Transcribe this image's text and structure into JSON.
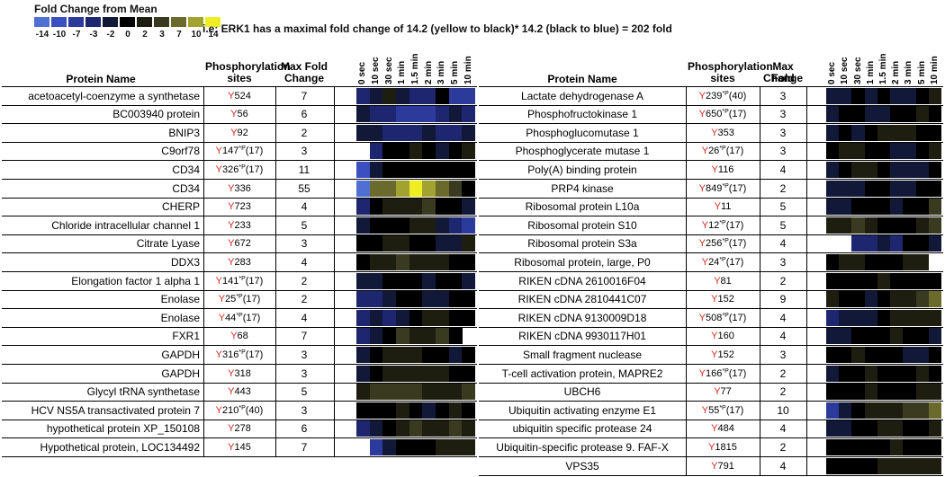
{
  "legend": {
    "title": "Fold Change from Mean",
    "labels": [
      "-14",
      "-10",
      "-7",
      "-3",
      "-2",
      "0",
      "2",
      "3",
      "7",
      "10",
      "14"
    ],
    "colors": [
      "#4f6fd2",
      "#3a4fc0",
      "#2c3a9c",
      "#1e2670",
      "#111838",
      "#000000",
      "#1e1e10",
      "#3a3a20",
      "#6a6a2c",
      "#a2a230",
      "#eeee22"
    ]
  },
  "note": "i.e: ERK1 has a maximal fold change of 14.2 (yellow to black)* 14.2 (black to blue) = 202 fold",
  "headers": {
    "protein": "Protein Name",
    "sites_line1": "Phosphorylation",
    "sites_line2": "sites",
    "fold_line1": "Max Fold",
    "fold_line2": "Change"
  },
  "times": [
    "0 sec",
    "10 sec",
    "30 sec",
    "1 min",
    "1.5 min",
    "2 min",
    "3 min",
    "5 min",
    "10 min"
  ],
  "left_table": [
    {
      "protein": "acetoacetyl-coenzyme a synthetase",
      "site": "524",
      "sup": "",
      "ref": "",
      "fold": "7",
      "heat": [
        3,
        4,
        6,
        4,
        3,
        3,
        5,
        2,
        2
      ]
    },
    {
      "protein": "BC003940 protein",
      "site": "56",
      "sup": "",
      "ref": "",
      "fold": "6",
      "heat": [
        4,
        3,
        3,
        2,
        2,
        2,
        3,
        4,
        3
      ]
    },
    {
      "protein": "BNIP3",
      "site": "92",
      "sup": "",
      "ref": "",
      "fold": "2",
      "heat": [
        4,
        4,
        3,
        3,
        3,
        4,
        3,
        3,
        4
      ]
    },
    {
      "protein": "C9orf78",
      "site": "147",
      "sup": "*P",
      "ref": "(17)",
      "fold": "3",
      "heat": [
        -1,
        3,
        5,
        5,
        6,
        5,
        4,
        5,
        6
      ]
    },
    {
      "protein": "CD34",
      "site": "326",
      "sup": "*P",
      "ref": "(17)",
      "fold": "11",
      "heat": [
        1,
        4,
        5,
        5,
        5,
        5,
        5,
        5,
        5
      ]
    },
    {
      "protein": "CD34",
      "site": "336",
      "sup": "",
      "ref": "",
      "fold": "55",
      "heat": [
        0,
        8,
        8,
        9,
        10,
        9,
        8,
        7,
        5
      ]
    },
    {
      "protein": "CHERP",
      "site": "723",
      "sup": "",
      "ref": "",
      "fold": "4",
      "heat": [
        3,
        5,
        6,
        6,
        6,
        7,
        5,
        5,
        4
      ]
    },
    {
      "protein": "Chloride intracellular channel 1",
      "site": "233",
      "sup": "",
      "ref": "",
      "fold": "5",
      "heat": [
        4,
        5,
        5,
        5,
        6,
        6,
        4,
        3,
        2
      ]
    },
    {
      "protein": "Citrate Lyase",
      "site": "672",
      "sup": "",
      "ref": "",
      "fold": "3",
      "heat": [
        5,
        5,
        6,
        6,
        5,
        5,
        4,
        4,
        6
      ]
    },
    {
      "protein": "DDX3",
      "site": "283",
      "sup": "",
      "ref": "",
      "fold": "4",
      "heat": [
        5,
        6,
        6,
        7,
        6,
        6,
        6,
        5,
        5
      ]
    },
    {
      "protein": "Elongation factor 1 alpha 1",
      "site": "141",
      "sup": "*P",
      "ref": "(17)",
      "fold": "2",
      "heat": [
        4,
        4,
        5,
        5,
        5,
        4,
        5,
        5,
        4
      ]
    },
    {
      "protein": "Enolase",
      "site": "25",
      "sup": "*P",
      "ref": "(17)",
      "fold": "2",
      "heat": [
        3,
        3,
        4,
        5,
        5,
        4,
        4,
        5,
        5
      ]
    },
    {
      "protein": "Enolase",
      "site": "44",
      "sup": "*P",
      "ref": "(17)",
      "fold": "4",
      "heat": [
        3,
        4,
        3,
        4,
        5,
        6,
        6,
        5,
        5
      ]
    },
    {
      "protein": "FXR1",
      "site": "68",
      "sup": "",
      "ref": "",
      "fold": "7",
      "heat": [
        3,
        4,
        5,
        7,
        6,
        6,
        7,
        5,
        -1
      ]
    },
    {
      "protein": "GAPDH",
      "site": "316",
      "sup": "*P",
      "ref": "(17)",
      "fold": "3",
      "heat": [
        4,
        5,
        6,
        6,
        6,
        5,
        5,
        4,
        5
      ]
    },
    {
      "protein": "GAPDH",
      "site": "318",
      "sup": "",
      "ref": "",
      "fold": "3",
      "heat": [
        4,
        5,
        6,
        6,
        6,
        6,
        6,
        5,
        5
      ]
    },
    {
      "protein": "Glycyl tRNA synthetase",
      "site": "443",
      "sup": "",
      "ref": "",
      "fold": "5",
      "heat": [
        6,
        7,
        7,
        7,
        7,
        6,
        6,
        6,
        7
      ]
    },
    {
      "protein": "HCV NS5A transactivated protein 7",
      "site": "210",
      "sup": "*P",
      "ref": "(40)",
      "fold": "3",
      "heat": [
        5,
        5,
        5,
        6,
        5,
        4,
        5,
        6,
        5
      ]
    },
    {
      "protein": "hypothetical protein XP_150108",
      "site": "278",
      "sup": "",
      "ref": "",
      "fold": "6",
      "heat": [
        3,
        4,
        5,
        6,
        7,
        6,
        6,
        7,
        6
      ]
    },
    {
      "protein": "Hypothetical protein, LOC134492",
      "site": "145",
      "sup": "",
      "ref": "",
      "fold": "7",
      "heat": [
        -1,
        2,
        4,
        5,
        5,
        5,
        6,
        6,
        6
      ]
    }
  ],
  "right_table": [
    {
      "protein": "Lactate dehydrogenase A",
      "site": "239",
      "sup": "*P",
      "ref": "(40)",
      "fold": "3",
      "heat": [
        4,
        4,
        5,
        4,
        5,
        4,
        4,
        5,
        6
      ]
    },
    {
      "protein": "Phosphofructokinase 1",
      "site": "650",
      "sup": "*P",
      "ref": "(17)",
      "fold": "3",
      "heat": [
        4,
        5,
        5,
        4,
        4,
        5,
        5,
        6,
        5
      ]
    },
    {
      "protein": "Phosphoglucomutase 1",
      "site": "353",
      "sup": "",
      "ref": "",
      "fold": "3",
      "heat": [
        4,
        5,
        4,
        5,
        6,
        6,
        6,
        5,
        5
      ]
    },
    {
      "protein": "Phosphoglycerate mutase 1",
      "site": "26",
      "sup": "*P",
      "ref": "(17)",
      "fold": "3",
      "heat": [
        5,
        6,
        6,
        5,
        5,
        4,
        4,
        5,
        6
      ]
    },
    {
      "protein": "Poly(A) binding protein",
      "site": "116",
      "sup": "",
      "ref": "",
      "fold": "4",
      "heat": [
        4,
        5,
        6,
        6,
        5,
        4,
        4,
        4,
        5
      ]
    },
    {
      "protein": "PRP4 kinase",
      "site": "849",
      "sup": "*P",
      "ref": "(17)",
      "fold": "2",
      "heat": [
        4,
        4,
        4,
        5,
        5,
        4,
        4,
        5,
        5
      ]
    },
    {
      "protein": "Ribosomal protein L10a",
      "site": "11",
      "sup": "",
      "ref": "",
      "fold": "5",
      "heat": [
        4,
        4,
        5,
        5,
        5,
        4,
        5,
        5,
        7
      ]
    },
    {
      "protein": "Ribosomal protein S10",
      "site": "12",
      "sup": "*P",
      "ref": "(17)",
      "fold": "5",
      "heat": [
        6,
        6,
        7,
        6,
        5,
        5,
        5,
        6,
        7
      ]
    },
    {
      "protein": "Ribosomal protein S3a",
      "site": "256",
      "sup": "*P",
      "ref": "(17)",
      "fold": "4",
      "heat": [
        -1,
        -1,
        3,
        3,
        4,
        3,
        5,
        5,
        4
      ]
    },
    {
      "protein": "Ribosomal protein, large, P0",
      "site": "24",
      "sup": "*P",
      "ref": "(17)",
      "fold": "3",
      "heat": [
        5,
        6,
        6,
        5,
        5,
        5,
        6,
        6,
        -1
      ]
    },
    {
      "protein": "RIKEN cDNA 2610016F04",
      "site": "81",
      "sup": "",
      "ref": "",
      "fold": "2",
      "heat": [
        5,
        5,
        5,
        5,
        6,
        5,
        5,
        5,
        5
      ]
    },
    {
      "protein": "RIKEN cDNA 2810441C07",
      "site": "152",
      "sup": "",
      "ref": "",
      "fold": "9",
      "heat": [
        6,
        5,
        5,
        4,
        5,
        6,
        6,
        7,
        8
      ]
    },
    {
      "protein": "RIKEN cDNA 9130009D18",
      "site": "508",
      "sup": "*P",
      "ref": "(17)",
      "fold": "4",
      "heat": [
        3,
        4,
        4,
        4,
        5,
        6,
        6,
        6,
        6
      ]
    },
    {
      "protein": "RIKEN cDNA 9930117H01",
      "site": "160",
      "sup": "",
      "ref": "",
      "fold": "4",
      "heat": [
        4,
        4,
        5,
        5,
        5,
        6,
        5,
        5,
        4
      ]
    },
    {
      "protein": "Small fragment nuclease",
      "site": "152",
      "sup": "",
      "ref": "",
      "fold": "3",
      "heat": [
        5,
        5,
        6,
        5,
        5,
        5,
        4,
        4,
        5
      ]
    },
    {
      "protein": "T-cell activation protein, MAPRE2",
      "site": "166",
      "sup": "*P",
      "ref": "(17)",
      "fold": "2",
      "heat": [
        4,
        5,
        5,
        6,
        5,
        5,
        5,
        6,
        5
      ]
    },
    {
      "protein": "UBCH6",
      "site": "77",
      "sup": "",
      "ref": "",
      "fold": "2",
      "heat": [
        5,
        5,
        5,
        6,
        5,
        5,
        5,
        6,
        6
      ]
    },
    {
      "protein": "Ubiquitin activating enzyme E1",
      "site": "55",
      "sup": "*P",
      "ref": "(17)",
      "fold": "10",
      "heat": [
        2,
        4,
        5,
        6,
        6,
        6,
        7,
        7,
        8
      ]
    },
    {
      "protein": "ubiquitin specific protease 24",
      "site": "484",
      "sup": "",
      "ref": "",
      "fold": "4",
      "heat": [
        4,
        4,
        5,
        5,
        6,
        6,
        5,
        5,
        6
      ]
    },
    {
      "protein": "Ubiquitin-specific protease 9. FAF-X",
      "site": "1815",
      "sup": "",
      "ref": "",
      "fold": "2",
      "heat": [
        5,
        5,
        5,
        5,
        5,
        6,
        5,
        5,
        5
      ]
    },
    {
      "protein": "VPS35",
      "site": "791",
      "sup": "",
      "ref": "",
      "fold": "4",
      "heat": [
        5,
        5,
        5,
        5,
        6,
        6,
        6,
        6,
        6
      ]
    }
  ]
}
